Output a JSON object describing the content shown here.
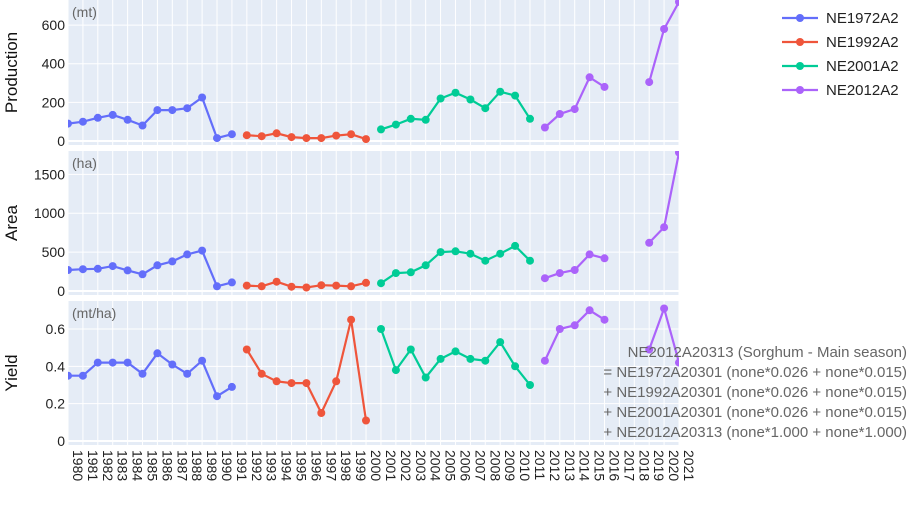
{
  "chart_data": {
    "type": "line",
    "x": [
      1980,
      1981,
      1982,
      1983,
      1984,
      1985,
      1986,
      1987,
      1988,
      1989,
      1990,
      1991,
      1992,
      1993,
      1994,
      1995,
      1996,
      1997,
      1998,
      1999,
      2000,
      2001,
      2002,
      2003,
      2004,
      2005,
      2006,
      2007,
      2008,
      2009,
      2010,
      2011,
      2012,
      2013,
      2014,
      2015,
      2016,
      2017,
      2018,
      2019,
      2020,
      2021
    ],
    "x_tick_labels": [
      "1980",
      "1981",
      "1982",
      "1983",
      "1984",
      "1985",
      "1986",
      "1987",
      "1988",
      "1989",
      "1990",
      "1991",
      "1992",
      "1993",
      "1994",
      "1995",
      "1996",
      "1997",
      "1998",
      "1999",
      "2000",
      "2001",
      "2002",
      "2003",
      "2004",
      "2005",
      "2006",
      "2007",
      "2008",
      "2009",
      "2010",
      "2011",
      "2012",
      "2013",
      "2014",
      "2015",
      "2016",
      "2017",
      "2018",
      "2019",
      "2020",
      "2021"
    ],
    "series": [
      {
        "name": "NE1972A2",
        "color": "#636efa",
        "x": [
          1980,
          1981,
          1982,
          1983,
          1984,
          1985,
          1986,
          1987,
          1988,
          1989,
          1990,
          1991
        ],
        "production": [
          90,
          100,
          120,
          135,
          110,
          80,
          160,
          160,
          170,
          225,
          15,
          35
        ],
        "area": [
          270,
          280,
          285,
          320,
          265,
          215,
          330,
          380,
          470,
          520,
          60,
          110
        ],
        "yield": [
          0.35,
          0.35,
          0.42,
          0.42,
          0.42,
          0.36,
          0.47,
          0.41,
          0.36,
          0.43,
          0.24,
          0.29
        ]
      },
      {
        "name": "NE1992A2",
        "color": "#ef553b",
        "x": [
          1992,
          1993,
          1994,
          1995,
          1996,
          1997,
          1998,
          1999,
          2000
        ],
        "production": [
          30,
          25,
          40,
          20,
          15,
          15,
          28,
          35,
          10
        ],
        "area": [
          70,
          60,
          120,
          55,
          45,
          75,
          70,
          60,
          105
        ],
        "yield": [
          0.49,
          0.36,
          0.32,
          0.31,
          0.31,
          0.15,
          0.32,
          0.65,
          0.11
        ]
      },
      {
        "name": "NE2001A2",
        "color": "#00cc96",
        "x": [
          2001,
          2002,
          2003,
          2004,
          2005,
          2006,
          2007,
          2008,
          2009,
          2010,
          2011
        ],
        "production": [
          60,
          85,
          115,
          110,
          220,
          250,
          215,
          170,
          255,
          235,
          115
        ],
        "area": [
          100,
          230,
          240,
          330,
          500,
          510,
          480,
          390,
          480,
          580,
          390
        ],
        "yield": [
          0.6,
          0.38,
          0.49,
          0.34,
          0.44,
          0.48,
          0.44,
          0.43,
          0.53,
          0.4,
          0.3
        ]
      },
      {
        "name": "NE2012A2",
        "color": "#ab63fa",
        "x": [
          2012,
          2013,
          2014,
          2015,
          2016,
          2019,
          2020,
          2021
        ],
        "production": [
          70,
          140,
          165,
          330,
          280,
          305,
          580,
          720
        ],
        "area": [
          165,
          230,
          270,
          470,
          420,
          620,
          820,
          1780
        ],
        "yield": [
          0.43,
          0.6,
          0.62,
          0.7,
          0.65,
          0.49,
          0.71,
          0.42
        ]
      }
    ],
    "panels": [
      {
        "key": "production",
        "ylabel": "Production",
        "unit": "(mt)",
        "ylim": [
          0,
          730
        ],
        "yticks": [
          0,
          200,
          400,
          600
        ]
      },
      {
        "key": "area",
        "ylabel": "Area",
        "unit": "(ha)",
        "ylim": [
          0,
          1800
        ],
        "yticks": [
          0,
          500,
          1000,
          1500
        ]
      },
      {
        "key": "yield",
        "ylabel": "Yield",
        "unit": "(mt/ha)",
        "ylim": [
          0,
          0.75
        ],
        "yticks": [
          0,
          0.2,
          0.4,
          0.6
        ]
      }
    ],
    "grid": true,
    "legend_position": "top-right",
    "annotation_lines": [
      "NE2012A20313 (Sorghum - Main season)",
      "= NE1972A20301 (none*0.026 + none*0.015)",
      "+ NE1992A20301 (none*0.026 + none*0.015)",
      "+ NE2001A20301 (none*0.026 + none*0.015)",
      "+ NE2012A20313 (none*1.000 + none*1.000)"
    ]
  }
}
